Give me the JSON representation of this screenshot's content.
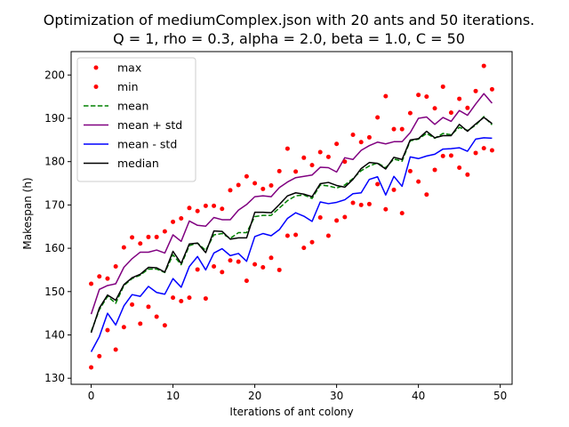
{
  "chart_data": {
    "type": "line",
    "title_lines": [
      "Optimization of mediumComplex.json with 20 ants and 50 iterations.",
      "Q = 1, rho = 0.3, alpha = 2.0, beta = 1.0, C = 50"
    ],
    "xlabel": "Iterations of ant colony",
    "ylabel": "Makespan (h)",
    "xlim": [
      -2.45,
      51.45
    ],
    "ylim": [
      128.6,
      205.4
    ],
    "xticks": [
      0,
      10,
      20,
      30,
      40,
      50
    ],
    "yticks": [
      130,
      140,
      150,
      160,
      170,
      180,
      190,
      200
    ],
    "grid": false,
    "legend_position": "upper-left",
    "x": [
      0,
      1,
      2,
      3,
      4,
      5,
      6,
      7,
      8,
      9,
      10,
      11,
      12,
      13,
      14,
      15,
      16,
      17,
      18,
      19,
      20,
      21,
      22,
      23,
      24,
      25,
      26,
      27,
      28,
      29,
      30,
      31,
      32,
      33,
      34,
      35,
      36,
      37,
      38,
      39,
      40,
      41,
      42,
      43,
      44,
      45,
      46,
      47,
      48,
      49
    ],
    "series": [
      {
        "name": "max",
        "style": "points",
        "color": "#ff0000",
        "values": [
          151.8,
          153.5,
          153.0,
          155.8,
          160.2,
          162.5,
          161.1,
          162.6,
          162.6,
          163.9,
          166.1,
          166.9,
          169.3,
          168.6,
          169.8,
          169.8,
          169.1,
          173.4,
          174.6,
          176.6,
          175.0,
          173.7,
          174.5,
          177.8,
          183.0,
          177.7,
          180.9,
          179.2,
          182.2,
          181.1,
          184.1,
          180.0,
          186.2,
          184.5,
          185.6,
          190.2,
          195.1,
          187.5,
          187.5,
          191.2,
          195.4,
          195.0,
          192.3,
          197.3,
          191.3,
          194.5,
          192.4,
          196.3,
          202.1,
          196.7
        ]
      },
      {
        "name": "min",
        "style": "points",
        "color": "#ff0000",
        "values": [
          132.5,
          135.1,
          141.1,
          136.6,
          141.8,
          147.0,
          142.6,
          146.5,
          144.2,
          142.2,
          148.6,
          147.8,
          148.6,
          155.1,
          148.4,
          155.8,
          154.5,
          157.2,
          156.9,
          152.5,
          156.3,
          155.6,
          157.8,
          155.0,
          162.9,
          163.1,
          160.1,
          161.4,
          167.1,
          162.9,
          166.4,
          167.2,
          170.5,
          170.0,
          170.2,
          174.8,
          169.0,
          173.5,
          168.1,
          177.8,
          175.4,
          172.4,
          178.1,
          181.3,
          181.4,
          178.6,
          177.0,
          182.0,
          183.1,
          182.6
        ]
      },
      {
        "name": "mean",
        "style": "dashed",
        "color": "#008000",
        "values": [
          140.8,
          145.8,
          148.9,
          147.3,
          151.4,
          153.0,
          153.8,
          155.2,
          155.2,
          154.4,
          158.5,
          156.2,
          160.6,
          161.2,
          159.5,
          163.1,
          163.4,
          162.3,
          163.6,
          163.6,
          167.3,
          167.6,
          167.6,
          169.3,
          171.0,
          172.1,
          172.3,
          171.5,
          174.6,
          174.4,
          173.9,
          174.6,
          176.1,
          177.9,
          179.0,
          179.7,
          178.6,
          180.6,
          180.1,
          184.8,
          185.2,
          186.5,
          185.4,
          186.5,
          186.2,
          187.9,
          187.2,
          188.4,
          190.4,
          188.5
        ]
      },
      {
        "name": "mean + std",
        "style": "solid",
        "color": "#800080",
        "values": [
          144.8,
          150.5,
          151.4,
          151.8,
          155.6,
          157.6,
          159.1,
          159.1,
          159.6,
          158.9,
          163.1,
          161.6,
          166.3,
          165.3,
          165.1,
          167.1,
          166.6,
          166.6,
          168.8,
          170.1,
          171.9,
          172.1,
          171.9,
          174.0,
          175.3,
          176.3,
          176.6,
          176.9,
          178.7,
          178.6,
          177.6,
          180.9,
          180.5,
          182.6,
          183.7,
          184.5,
          184.1,
          184.6,
          184.6,
          186.7,
          190.0,
          190.3,
          188.6,
          190.2,
          189.3,
          191.8,
          190.7,
          193.3,
          195.7,
          193.5
        ]
      },
      {
        "name": "mean - std",
        "style": "solid",
        "color": "#0000ff",
        "values": [
          136.1,
          139.6,
          145.0,
          142.3,
          146.7,
          149.3,
          148.9,
          151.2,
          149.8,
          149.4,
          153.0,
          151.0,
          155.8,
          158.1,
          155.0,
          158.9,
          159.9,
          158.3,
          158.8,
          157.0,
          162.7,
          163.4,
          162.9,
          164.3,
          166.9,
          168.2,
          167.4,
          166.2,
          170.7,
          170.3,
          170.6,
          171.2,
          172.6,
          172.8,
          175.9,
          176.5,
          172.3,
          176.6,
          174.3,
          181.1,
          180.7,
          181.3,
          181.7,
          182.9,
          183.0,
          183.2,
          182.4,
          185.2,
          185.5,
          185.4
        ]
      },
      {
        "name": "median",
        "style": "solid",
        "color": "#000000",
        "values": [
          140.5,
          146.2,
          149.2,
          148.0,
          151.6,
          153.2,
          154.0,
          155.6,
          155.5,
          154.5,
          159.3,
          156.5,
          161.0,
          161.2,
          159.0,
          164.0,
          163.9,
          162.1,
          162.4,
          162.4,
          168.3,
          168.3,
          168.2,
          170.1,
          172.1,
          172.8,
          172.5,
          171.9,
          174.9,
          175.2,
          174.5,
          174.1,
          175.9,
          178.4,
          179.8,
          179.6,
          178.3,
          181.0,
          180.5,
          185.0,
          185.3,
          187.0,
          185.5,
          186.0,
          186.0,
          188.6,
          187.0,
          188.7,
          190.2,
          188.8
        ]
      }
    ]
  }
}
